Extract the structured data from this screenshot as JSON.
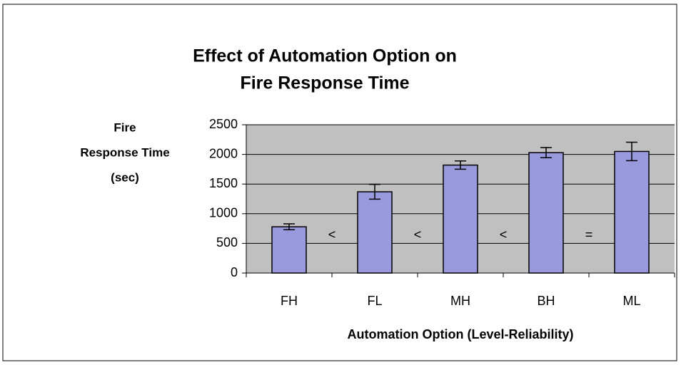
{
  "chart_data": {
    "type": "bar",
    "title": [
      "Effect of Automation Option on",
      "Fire Response Time"
    ],
    "y_label": [
      "Fire",
      "Response Time",
      "(sec)"
    ],
    "x_label": "Automation Option (Level-Reliability)",
    "categories": [
      "FH",
      "FL",
      "MH",
      "BH",
      "ML"
    ],
    "values": [
      780,
      1370,
      1820,
      2030,
      2050
    ],
    "errors": [
      50,
      125,
      70,
      85,
      155
    ],
    "comparisons": [
      "<",
      "<",
      "<",
      "="
    ],
    "color": "#9999dd",
    "ylim": [
      0,
      2500
    ],
    "yticks": [
      0,
      500,
      1000,
      1500,
      2000,
      2500
    ],
    "grid": true
  }
}
